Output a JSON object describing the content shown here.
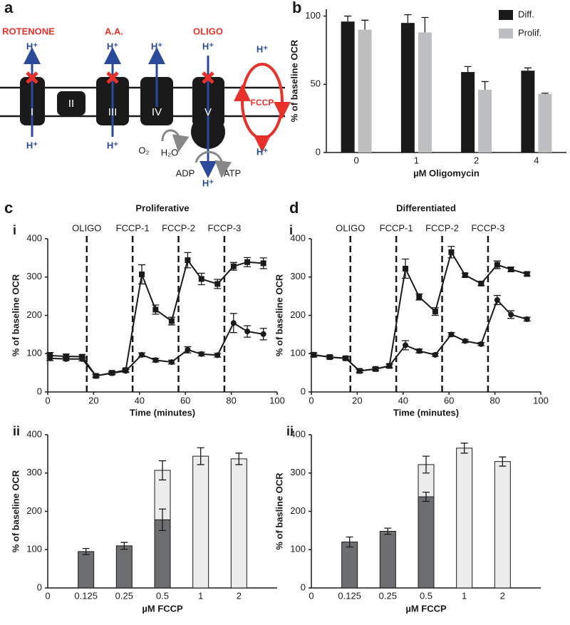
{
  "labels": [
    "a",
    "b",
    "c",
    "d",
    "i",
    "i",
    "ii",
    "ii"
  ],
  "diagram": {
    "inhibitors": [
      "ROTENONE",
      "A.A.",
      "OLIGO"
    ],
    "complexes": [
      "I",
      "II",
      "III",
      "IV",
      "V"
    ],
    "uncoupler": "FCCP",
    "proton": "H⁺",
    "substrates": [
      "O₂",
      "H₂O",
      "ADP",
      "ATP"
    ]
  },
  "chart_data": [
    {
      "type": "bar",
      "barmode": "group",
      "ylabel": "% of baseline OCR",
      "xlabel": "µM Oligomycin",
      "categories": [
        "0",
        "1",
        "2",
        "4"
      ],
      "ylim": [
        0,
        105
      ],
      "yticks": [
        0,
        50,
        100
      ],
      "legend": "top-right",
      "series": [
        {
          "name": "Diff.",
          "color": "#1a1a1a",
          "values": [
            96,
            95,
            59,
            60
          ],
          "errors": [
            4,
            6,
            4,
            2
          ]
        },
        {
          "name": "Prolif.",
          "color": "#bcbec0",
          "values": [
            90,
            88,
            46,
            43
          ],
          "errors": [
            7,
            11,
            6,
            0.5
          ]
        }
      ]
    },
    {
      "type": "line",
      "title": "Proliferative",
      "ylabel": "% of baseline OCR",
      "xlabel": "Time (minutes)",
      "x": [
        1,
        8,
        15,
        21,
        28,
        34,
        41,
        47,
        54,
        61,
        67,
        74,
        81,
        87,
        94
      ],
      "xlim": [
        0,
        100
      ],
      "xticks": [
        0,
        20,
        40,
        60,
        80,
        100
      ],
      "ylim": [
        0,
        400
      ],
      "yticks": [
        0,
        100,
        200,
        300,
        400
      ],
      "vlines": [
        {
          "x": 17,
          "label": "OLIGO"
        },
        {
          "x": 37,
          "label": "FCCP-1"
        },
        {
          "x": 57,
          "label": "FCCP-2"
        },
        {
          "x": 77,
          "label": "FCCP-3"
        }
      ],
      "series": [
        {
          "color": "#1a1a1a",
          "marker": "square",
          "values": [
            95,
            93,
            92,
            42,
            50,
            57,
            307,
            215,
            185,
            344,
            295,
            282,
            328,
            339,
            336
          ],
          "errors": [
            8,
            6,
            5,
            4,
            4,
            5,
            25,
            12,
            10,
            20,
            15,
            12,
            10,
            12,
            14
          ]
        },
        {
          "color": "#1a1a1a",
          "marker": "circle",
          "values": [
            88,
            86,
            86,
            42,
            49,
            55,
            97,
            83,
            78,
            110,
            99,
            96,
            180,
            158,
            151
          ],
          "errors": [
            6,
            4,
            5,
            3,
            3,
            4,
            5,
            5,
            5,
            8,
            5,
            5,
            25,
            15,
            15
          ]
        }
      ]
    },
    {
      "type": "line",
      "title": "Differentiated",
      "ylabel": "% of baseline OCR",
      "xlabel": "Time (minutes)",
      "x": [
        1,
        8,
        15,
        21,
        28,
        34,
        41,
        47,
        54,
        61,
        67,
        74,
        81,
        87,
        94
      ],
      "xlim": [
        0,
        100
      ],
      "xticks": [
        0,
        20,
        40,
        60,
        80,
        100
      ],
      "ylim": [
        0,
        400
      ],
      "yticks": [
        0,
        100,
        200,
        300,
        400
      ],
      "vlines": [
        {
          "x": 17,
          "label": "OLIGO"
        },
        {
          "x": 37,
          "label": "FCCP-1"
        },
        {
          "x": 57,
          "label": "FCCP-2"
        },
        {
          "x": 77,
          "label": "FCCP-3"
        }
      ],
      "series": [
        {
          "color": "#1a1a1a",
          "marker": "square",
          "values": [
            97,
            91,
            88,
            55,
            60,
            68,
            322,
            248,
            210,
            365,
            305,
            283,
            332,
            320,
            308
          ],
          "errors": [
            5,
            4,
            4,
            4,
            4,
            5,
            25,
            8,
            10,
            15,
            5,
            5,
            10,
            6,
            5
          ]
        },
        {
          "color": "#1a1a1a",
          "marker": "circle",
          "values": [
            97,
            91,
            88,
            55,
            60,
            68,
            122,
            107,
            97,
            150,
            133,
            125,
            240,
            202,
            190
          ],
          "errors": [
            5,
            4,
            4,
            4,
            4,
            5,
            12,
            5,
            4,
            5,
            4,
            4,
            12,
            10,
            5
          ]
        }
      ]
    },
    {
      "type": "bar",
      "barmode": "overlay",
      "ylabel": "% of baseline OCR",
      "xlabel": "µM FCCP",
      "categories": [
        "0",
        "0.125",
        "0.25",
        "0.5",
        "1",
        "2"
      ],
      "ylim": [
        0,
        400
      ],
      "yticks": [
        0,
        100,
        200,
        300,
        400
      ],
      "edgecolor": "#1a1a1a",
      "series": [
        {
          "color": "#ececec",
          "values": [
            null,
            null,
            null,
            307,
            344,
            337
          ],
          "errors": [
            null,
            null,
            null,
            25,
            22,
            15
          ]
        },
        {
          "color": "#6d6e70",
          "values": [
            null,
            95,
            110,
            178,
            null,
            null
          ],
          "errors": [
            null,
            8,
            9,
            28,
            null,
            null
          ]
        }
      ]
    },
    {
      "type": "bar",
      "barmode": "overlay",
      "ylabel": "% of basline OCR",
      "xlabel": "µM FCCP",
      "categories": [
        "0",
        "0.125",
        "0.25",
        "0.5",
        "1",
        "2"
      ],
      "ylim": [
        0,
        400
      ],
      "yticks": [
        0,
        100,
        200,
        300,
        400
      ],
      "edgecolor": "#1a1a1a",
      "series": [
        {
          "color": "#ececec",
          "values": [
            null,
            null,
            null,
            322,
            365,
            330
          ],
          "errors": [
            null,
            null,
            null,
            22,
            13,
            12
          ]
        },
        {
          "color": "#6d6e70",
          "values": [
            null,
            120,
            148,
            238,
            null,
            null
          ],
          "errors": [
            null,
            13,
            8,
            12,
            null,
            null
          ]
        }
      ]
    }
  ]
}
